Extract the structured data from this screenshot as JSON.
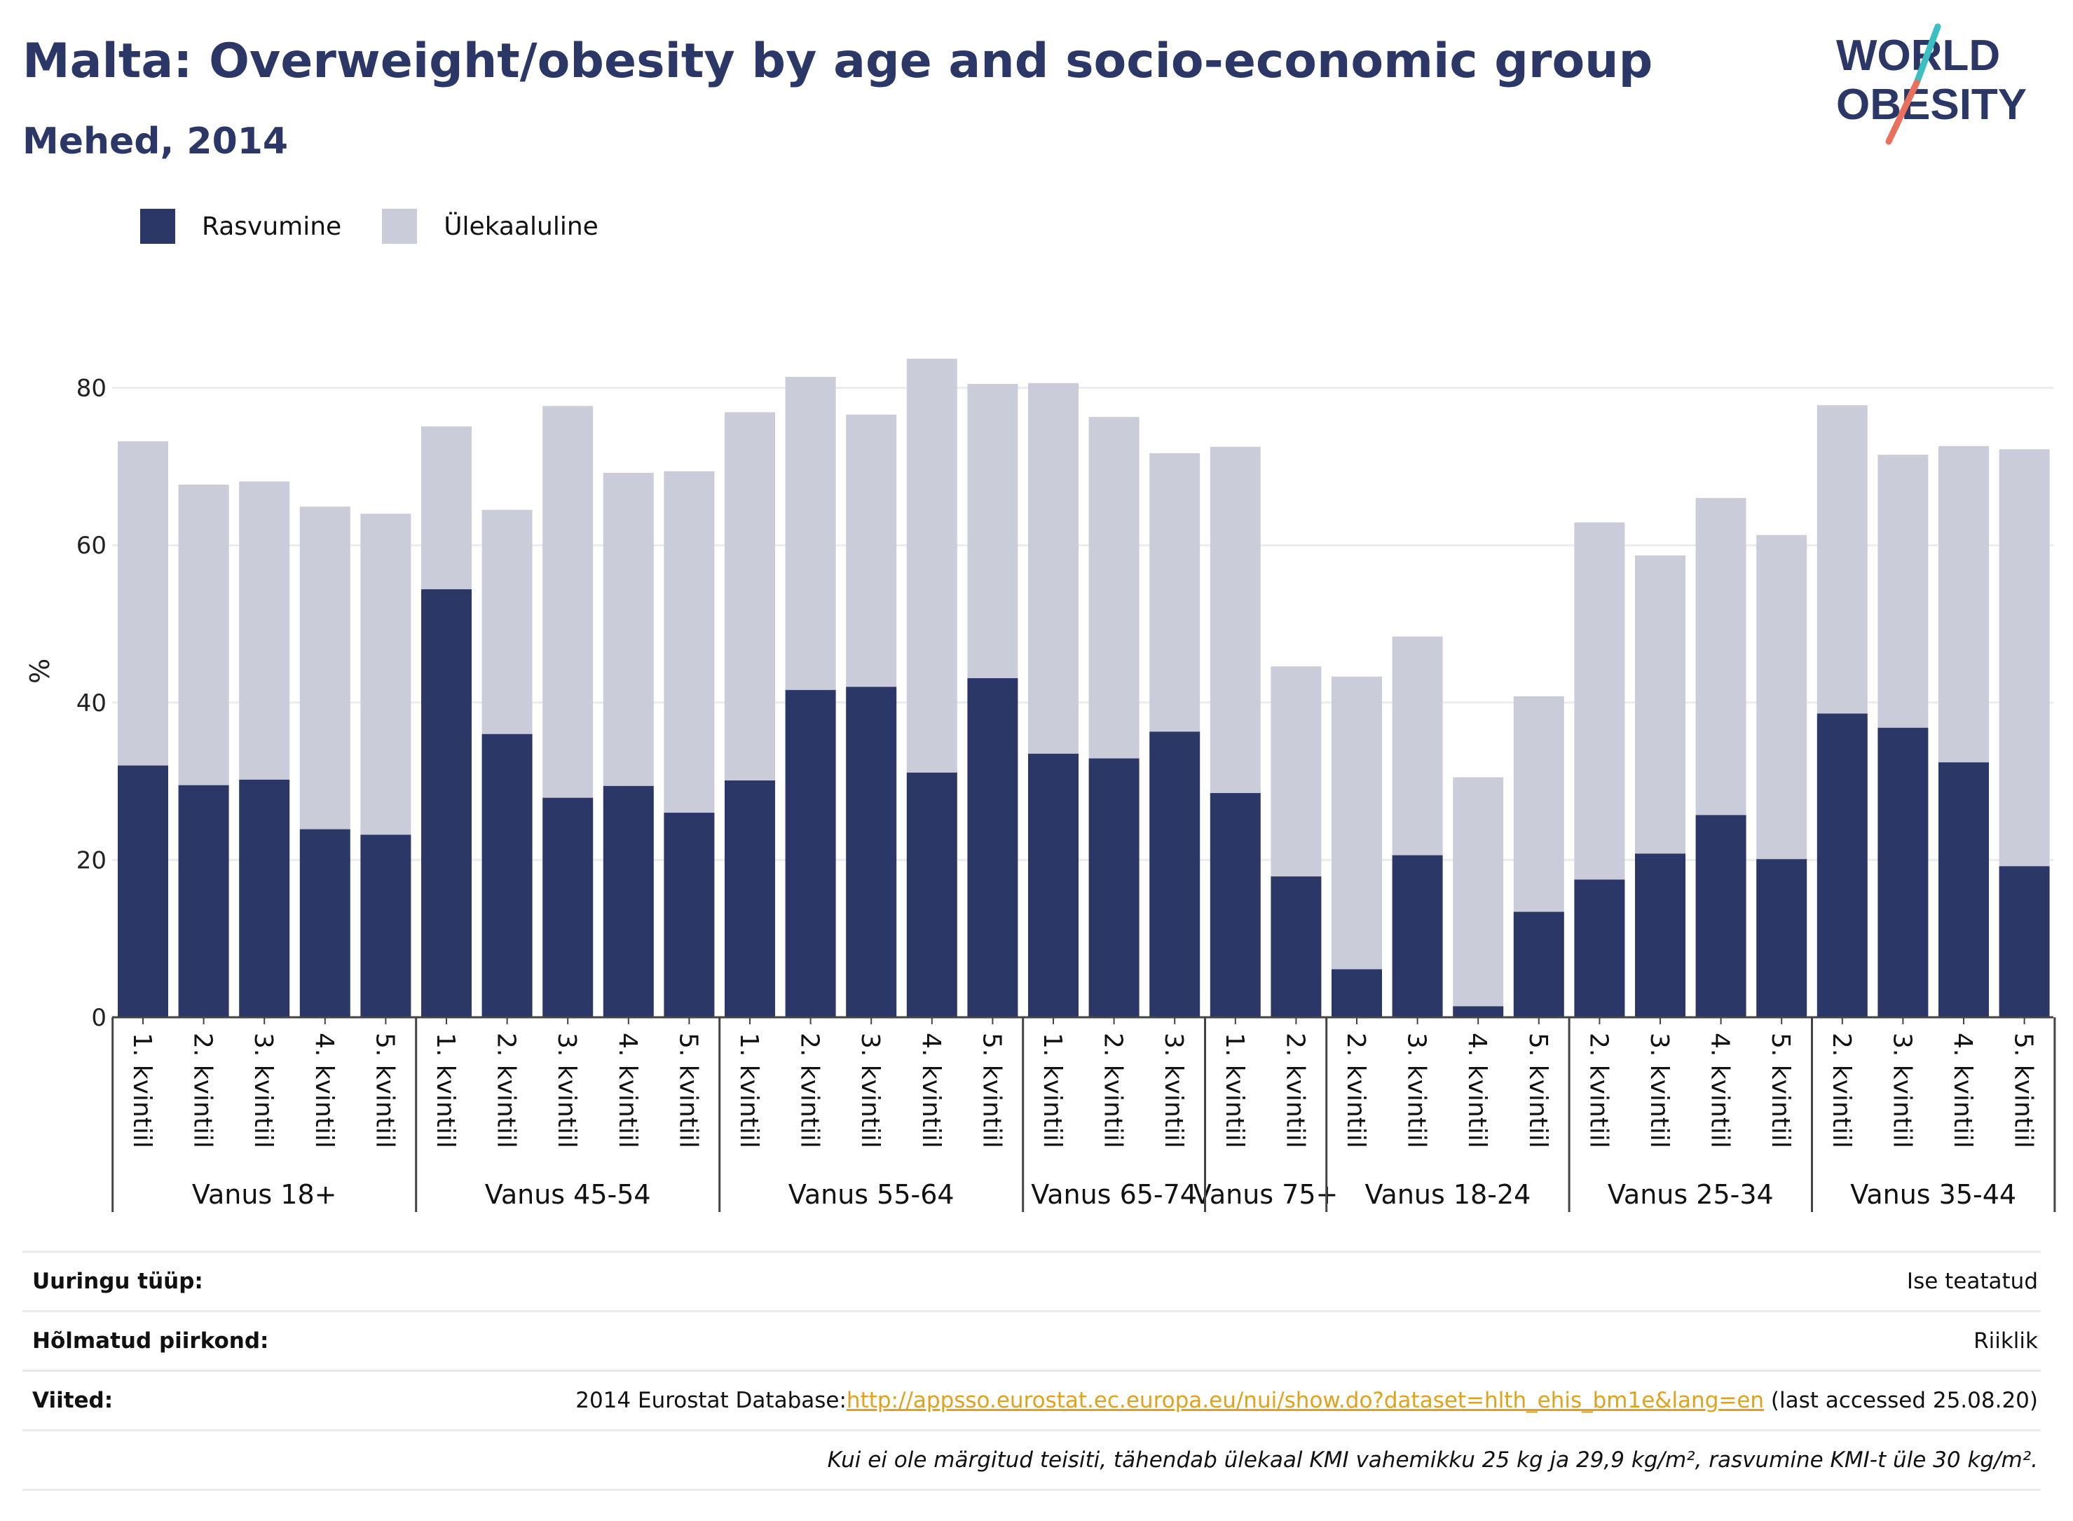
{
  "header": {
    "title": "Malta: Overweight/obesity by age and socio-economic group",
    "subtitle": "Mehed, 2014"
  },
  "logo": {
    "line1": "WORLD",
    "line2": "OBESITY"
  },
  "colors": {
    "obese": "#2b3766",
    "overweight": "#cbccd9",
    "title": "#2b3766",
    "link": "#e0a21c"
  },
  "legend": [
    {
      "label": "Rasvumine",
      "color": "#2b3766"
    },
    {
      "label": "Ülekaaluline",
      "color": "#cbccd9"
    }
  ],
  "chart_data": {
    "type": "bar",
    "stacked": true,
    "ylabel": "%",
    "ylim": [
      0,
      88
    ],
    "yticks": [
      0,
      20,
      40,
      60,
      80
    ],
    "grid": true,
    "legend_position": "top-left",
    "groups": [
      {
        "label": "Vanus 18+",
        "categories": [
          "1. kvintiil",
          "2. kvintiil",
          "3. kvintiil",
          "4. kvintiil",
          "5. kvintiil"
        ]
      },
      {
        "label": "Vanus 45-54",
        "categories": [
          "1. kvintiil",
          "2. kvintiil",
          "3. kvintiil",
          "4. kvintiil",
          "5. kvintiil"
        ]
      },
      {
        "label": "Vanus 55-64",
        "categories": [
          "1. kvintiil",
          "2. kvintiil",
          "3. kvintiil",
          "4. kvintiil",
          "5. kvintiil"
        ]
      },
      {
        "label": "Vanus 65-74",
        "categories": [
          "1. kvintiil",
          "2. kvintiil",
          "3. kvintiil"
        ]
      },
      {
        "label": "Vanus 75+",
        "categories": [
          "1. kvintiil",
          "2. kvintiil"
        ]
      },
      {
        "label": "Vanus 18-24",
        "categories": [
          "2. kvintiil",
          "3. kvintiil",
          "4. kvintiil",
          "5. kvintiil"
        ]
      },
      {
        "label": "Vanus 25-34",
        "categories": [
          "2. kvintiil",
          "3. kvintiil",
          "4. kvintiil",
          "5. kvintiil"
        ]
      },
      {
        "label": "Vanus 35-44",
        "categories": [
          "2. kvintiil",
          "3. kvintiil",
          "4. kvintiil",
          "5. kvintiil"
        ]
      }
    ],
    "series": [
      {
        "name": "Rasvumine",
        "values": [
          32.0,
          29.5,
          30.2,
          23.9,
          23.2,
          54.4,
          36.0,
          27.9,
          29.4,
          26.0,
          30.1,
          41.6,
          42.0,
          31.1,
          43.1,
          33.5,
          32.9,
          36.3,
          28.5,
          17.9,
          6.1,
          20.6,
          1.4,
          13.4,
          17.5,
          20.8,
          25.7,
          20.1,
          38.6,
          36.8,
          32.4,
          19.2
        ]
      },
      {
        "name": "Ülekaaluline",
        "values": [
          41.2,
          38.2,
          37.9,
          41.0,
          40.8,
          20.7,
          28.5,
          49.8,
          39.8,
          43.4,
          46.8,
          39.8,
          34.6,
          52.6,
          37.4,
          47.1,
          43.4,
          35.4,
          44.0,
          26.7,
          37.2,
          27.8,
          29.1,
          27.4,
          45.4,
          37.9,
          40.3,
          41.2,
          39.2,
          34.7,
          40.2,
          53.0
        ]
      }
    ]
  },
  "info": {
    "survey_type_label": "Uuringu tüüp:",
    "survey_type_value": "Ise teatatud",
    "coverage_label": "Hõlmatud piirkond:",
    "coverage_value": "Riiklik",
    "references_label": "Viited:",
    "references_prefix": "2014 Eurostat Database:",
    "references_link": "http://appsso.eurostat.ec.europa.eu/nui/show.do?dataset=hlth_ehis_bm1e&lang=en",
    "references_suffix": " (last accessed 25.08.20)",
    "note": "Kui ei ole märgitud teisiti, tähendab ülekaal KMI vahemikku 25 kg ja 29,9 kg/m², rasvumine KMI-t üle 30 kg/m²."
  }
}
